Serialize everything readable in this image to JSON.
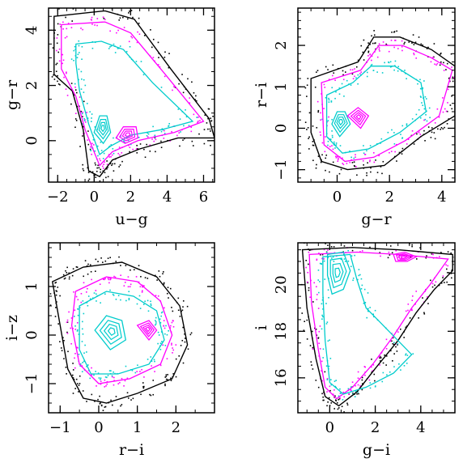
{
  "chart_data": [
    {
      "type": "scatter",
      "xlabel": "u−g",
      "ylabel": "g−r",
      "xlim": [
        -2.5,
        6.6
      ],
      "ylim": [
        -1.5,
        4.8
      ],
      "xticks": [
        -2,
        0,
        2,
        4,
        6
      ],
      "yticks": [
        0,
        2,
        4
      ],
      "xtick_labels": [
        "−2",
        "0",
        "2",
        "4",
        "6"
      ],
      "ytick_labels": [
        "0",
        "2",
        "4"
      ],
      "series": [
        {
          "color": "#000000",
          "style": "outer-contour",
          "points": [
            [
              -2.2,
              4.5
            ],
            [
              0.6,
              4.7
            ],
            [
              2.2,
              4.4
            ],
            [
              4.2,
              2.6
            ],
            [
              6.3,
              0.8
            ],
            [
              6.6,
              0.1
            ],
            [
              4.6,
              0.1
            ],
            [
              2.5,
              -0.3
            ],
            [
              1.0,
              -0.7
            ],
            [
              0.3,
              -1.3
            ],
            [
              -0.3,
              -1.1
            ],
            [
              -0.6,
              0.4
            ],
            [
              -1.2,
              1.8
            ],
            [
              -2.2,
              2.4
            ]
          ]
        },
        {
          "color": "#ff00ff",
          "style": "contour",
          "points": [
            [
              -1.8,
              4.2
            ],
            [
              0.6,
              4.3
            ],
            [
              2.0,
              3.9
            ],
            [
              3.9,
              2.4
            ],
            [
              6.0,
              0.7
            ],
            [
              4.4,
              0.3
            ],
            [
              2.4,
              0.0
            ],
            [
              1.0,
              -0.4
            ],
            [
              0.3,
              -0.9
            ],
            [
              -0.5,
              0.4
            ],
            [
              -1.0,
              1.6
            ],
            [
              -1.8,
              2.6
            ]
          ]
        },
        {
          "color": "#00cccc",
          "style": "contour",
          "points": [
            [
              -1.0,
              3.5
            ],
            [
              0.4,
              3.6
            ],
            [
              1.6,
              3.3
            ],
            [
              3.2,
              2.1
            ],
            [
              5.4,
              0.7
            ],
            [
              3.7,
              0.4
            ],
            [
              2.0,
              0.2
            ],
            [
              0.9,
              -0.2
            ],
            [
              0.3,
              -0.5
            ],
            [
              -0.3,
              0.6
            ],
            [
              -0.8,
              1.8
            ],
            [
              -1.0,
              2.8
            ]
          ]
        },
        {
          "color": "#00cccc",
          "style": "core",
          "points": [
            [
              0.0,
              0.3
            ],
            [
              0.3,
              0.9
            ],
            [
              0.7,
              0.9
            ],
            [
              0.9,
              0.3
            ],
            [
              0.5,
              -0.1
            ]
          ]
        },
        {
          "color": "#ff00ff",
          "style": "core",
          "points": [
            [
              1.2,
              0.1
            ],
            [
              1.6,
              0.5
            ],
            [
              2.3,
              0.5
            ],
            [
              2.4,
              0.1
            ],
            [
              1.7,
              -0.1
            ]
          ]
        }
      ]
    },
    {
      "type": "scatter",
      "xlabel": "g−r",
      "ylabel": "r−i",
      "xlim": [
        -1.5,
        4.5
      ],
      "ylim": [
        -1.3,
        2.9
      ],
      "xticks": [
        0,
        2,
        4
      ],
      "yticks": [
        -1,
        0,
        1,
        2
      ],
      "xtick_labels": [
        "0",
        "2",
        "4"
      ],
      "ytick_labels": [
        "−1",
        "0",
        "1",
        "2"
      ],
      "series": [
        {
          "color": "#000000",
          "style": "outer-contour",
          "points": [
            [
              -1.0,
              1.2
            ],
            [
              0.8,
              1.6
            ],
            [
              1.4,
              2.2
            ],
            [
              2.4,
              2.2
            ],
            [
              3.6,
              1.9
            ],
            [
              4.5,
              1.5
            ],
            [
              4.5,
              0.3
            ],
            [
              3.2,
              -0.2
            ],
            [
              1.8,
              -0.9
            ],
            [
              0.4,
              -1.0
            ],
            [
              -0.6,
              -0.8
            ],
            [
              -1.0,
              -0.1
            ]
          ]
        },
        {
          "color": "#ff00ff",
          "style": "contour",
          "points": [
            [
              -0.6,
              1.1
            ],
            [
              0.9,
              1.4
            ],
            [
              1.6,
              2.0
            ],
            [
              2.5,
              2.0
            ],
            [
              3.6,
              1.7
            ],
            [
              4.4,
              1.4
            ],
            [
              3.9,
              0.3
            ],
            [
              2.6,
              -0.3
            ],
            [
              1.4,
              -0.7
            ],
            [
              0.3,
              -0.8
            ],
            [
              -0.5,
              -0.4
            ]
          ]
        },
        {
          "color": "#00cccc",
          "style": "contour",
          "points": [
            [
              -0.4,
              0.8
            ],
            [
              0.6,
              1.1
            ],
            [
              1.3,
              1.5
            ],
            [
              2.2,
              1.5
            ],
            [
              3.2,
              1.1
            ],
            [
              3.4,
              0.4
            ],
            [
              2.4,
              -0.1
            ],
            [
              1.2,
              -0.5
            ],
            [
              0.2,
              -0.6
            ],
            [
              -0.4,
              -0.2
            ]
          ]
        },
        {
          "color": "#00cccc",
          "style": "core",
          "points": [
            [
              -0.2,
              0.1
            ],
            [
              0.0,
              0.4
            ],
            [
              0.3,
              0.4
            ],
            [
              0.5,
              0.1
            ],
            [
              0.1,
              -0.2
            ]
          ]
        },
        {
          "color": "#ff00ff",
          "style": "core",
          "points": [
            [
              0.4,
              0.3
            ],
            [
              0.8,
              0.5
            ],
            [
              1.2,
              0.3
            ],
            [
              0.9,
              0.0
            ]
          ]
        }
      ]
    },
    {
      "type": "scatter",
      "xlabel": "r−i",
      "ylabel": "i−z",
      "xlim": [
        -1.3,
        3.0
      ],
      "ylim": [
        -1.6,
        1.9
      ],
      "xticks": [
        -1,
        0,
        1,
        2
      ],
      "yticks": [
        -1,
        0,
        1
      ],
      "xtick_labels": [
        "−1",
        "0",
        "1",
        "2"
      ],
      "ytick_labels": [
        "−1",
        "0",
        "1"
      ],
      "series": [
        {
          "color": "#000000",
          "style": "outer-contour",
          "points": [
            [
              -1.2,
              1.1
            ],
            [
              -0.4,
              1.4
            ],
            [
              0.6,
              1.5
            ],
            [
              1.5,
              1.2
            ],
            [
              2.1,
              0.6
            ],
            [
              2.3,
              -0.2
            ],
            [
              1.9,
              -0.9
            ],
            [
              1.0,
              -1.2
            ],
            [
              0.2,
              -1.4
            ],
            [
              -0.4,
              -1.3
            ],
            [
              -0.8,
              -0.7
            ],
            [
              -1.0,
              0.2
            ]
          ]
        },
        {
          "color": "#ff00ff",
          "style": "contour",
          "points": [
            [
              -0.6,
              0.9
            ],
            [
              0.2,
              1.2
            ],
            [
              1.0,
              1.1
            ],
            [
              1.6,
              0.7
            ],
            [
              1.9,
              0.0
            ],
            [
              1.6,
              -0.6
            ],
            [
              0.8,
              -0.9
            ],
            [
              0.0,
              -1.0
            ],
            [
              -0.5,
              -0.6
            ],
            [
              -0.7,
              0.2
            ]
          ]
        },
        {
          "color": "#00cccc",
          "style": "contour",
          "points": [
            [
              -0.5,
              0.6
            ],
            [
              0.2,
              0.9
            ],
            [
              0.9,
              0.8
            ],
            [
              1.5,
              0.5
            ],
            [
              1.7,
              -0.1
            ],
            [
              1.3,
              -0.6
            ],
            [
              0.5,
              -0.8
            ],
            [
              -0.2,
              -0.8
            ],
            [
              -0.5,
              -0.3
            ]
          ]
        },
        {
          "color": "#00cccc",
          "style": "core",
          "points": [
            [
              -0.1,
              0.1
            ],
            [
              0.2,
              0.4
            ],
            [
              0.6,
              0.3
            ],
            [
              0.7,
              -0.1
            ],
            [
              0.3,
              -0.3
            ]
          ]
        },
        {
          "color": "#ff00ff",
          "style": "core",
          "points": [
            [
              1.0,
              0.2
            ],
            [
              1.3,
              0.3
            ],
            [
              1.5,
              0.1
            ],
            [
              1.3,
              -0.1
            ]
          ]
        }
      ]
    },
    {
      "type": "scatter",
      "xlabel": "g−i",
      "ylabel": "i",
      "xlim": [
        -1.4,
        5.5
      ],
      "ylim": [
        14.5,
        21.8
      ],
      "xticks": [
        0,
        2,
        4
      ],
      "yticks": [
        16,
        18,
        20
      ],
      "xtick_labels": [
        "0",
        "2",
        "4"
      ],
      "ytick_labels": [
        "16",
        "18",
        "20"
      ],
      "series": [
        {
          "color": "#000000",
          "style": "outer-contour",
          "points": [
            [
              -1.2,
              21.5
            ],
            [
              1.0,
              21.6
            ],
            [
              3.0,
              21.5
            ],
            [
              5.4,
              21.3
            ],
            [
              5.4,
              20.6
            ],
            [
              4.6,
              19.8
            ],
            [
              3.8,
              18.8
            ],
            [
              3.0,
              17.6
            ],
            [
              2.0,
              16.4
            ],
            [
              1.2,
              15.4
            ],
            [
              0.4,
              14.8
            ],
            [
              -0.2,
              15.2
            ],
            [
              -0.6,
              16.8
            ],
            [
              -1.0,
              19.0
            ]
          ]
        },
        {
          "color": "#ff00ff",
          "style": "contour",
          "points": [
            [
              -0.9,
              21.3
            ],
            [
              1.2,
              21.4
            ],
            [
              3.0,
              21.3
            ],
            [
              5.2,
              21.1
            ],
            [
              4.4,
              20.0
            ],
            [
              3.6,
              19.0
            ],
            [
              2.8,
              17.8
            ],
            [
              1.9,
              16.6
            ],
            [
              1.0,
              15.6
            ],
            [
              0.3,
              15.1
            ],
            [
              -0.2,
              15.6
            ],
            [
              -0.5,
              17.2
            ],
            [
              -0.8,
              19.2
            ]
          ]
        },
        {
          "color": "#00cccc",
          "style": "contour",
          "points": [
            [
              -0.3,
              21.2
            ],
            [
              0.9,
              21.3
            ],
            [
              1.2,
              20.2
            ],
            [
              1.6,
              19.0
            ],
            [
              2.6,
              18.0
            ],
            [
              3.6,
              17.0
            ],
            [
              2.8,
              16.2
            ],
            [
              1.6,
              15.6
            ],
            [
              0.6,
              15.3
            ],
            [
              0.0,
              15.8
            ],
            [
              -0.2,
              17.6
            ],
            [
              -0.3,
              19.6
            ]
          ]
        },
        {
          "color": "#00cccc",
          "style": "core",
          "points": [
            [
              -0.1,
              21.3
            ],
            [
              0.6,
              21.4
            ],
            [
              0.9,
              20.6
            ],
            [
              0.6,
              19.8
            ],
            [
              0.1,
              19.6
            ],
            [
              -0.1,
              20.4
            ]
          ]
        },
        {
          "color": "#ff00ff",
          "style": "core",
          "points": [
            [
              2.8,
              21.3
            ],
            [
              3.3,
              21.4
            ],
            [
              3.8,
              21.2
            ],
            [
              3.4,
              21.0
            ],
            [
              2.9,
              21.0
            ]
          ]
        }
      ]
    }
  ]
}
